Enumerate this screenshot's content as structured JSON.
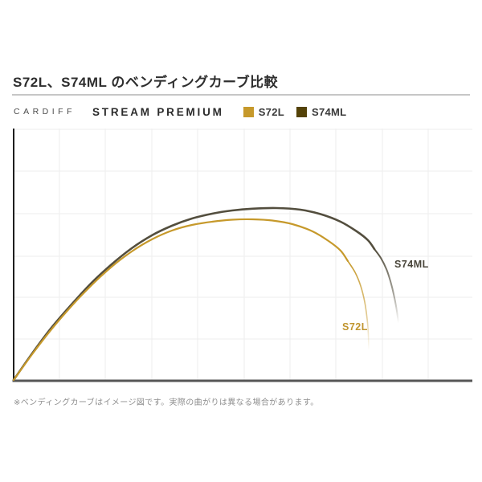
{
  "header": {
    "title": "S72L、S74ML のベンディングカーブ比較"
  },
  "legend": {
    "brand": "CARDIFF",
    "product": "STREAM PREMIUM",
    "items": [
      {
        "label": "S72L",
        "color": "#C6992B"
      },
      {
        "label": "S74ML",
        "color": "#544208"
      }
    ]
  },
  "footnote": {
    "text": "※ベンディングカーブはイメージ図です。実際の曲がりは異なる場合があります。"
  },
  "chart_data": {
    "type": "line",
    "title": "S72L、S74ML のベンディングカーブ比較",
    "xlabel": "",
    "ylabel": "",
    "axes_labeled": false,
    "grid": true,
    "note": "Illustrative rod bending curves from butt (origin, lower left) to tip; no numeric axis scales are shown",
    "series": [
      {
        "name": "S72L",
        "color": "#C6992B",
        "label_color": "#C0952F",
        "stroke_width": 2.2,
        "label_pos": [
          426,
          411
        ],
        "points": [
          [
            17,
            473
          ],
          [
            40,
            441
          ],
          [
            64,
            410
          ],
          [
            89,
            381
          ],
          [
            114,
            355
          ],
          [
            139,
            332
          ],
          [
            164,
            313
          ],
          [
            189,
            298
          ],
          [
            214,
            287
          ],
          [
            239,
            280
          ],
          [
            264,
            276
          ],
          [
            289,
            273.5
          ],
          [
            314,
            273
          ],
          [
            339,
            274.5
          ],
          [
            364,
            279
          ],
          [
            389,
            288
          ],
          [
            409,
            300
          ],
          [
            424,
            312
          ],
          [
            433,
            325
          ]
        ],
        "tail": [
          [
            433,
            325
          ],
          [
            442,
            339
          ],
          [
            449,
            356
          ],
          [
            454,
            376
          ],
          [
            457,
            397
          ],
          [
            458.5,
            416
          ],
          [
            459,
            436
          ]
        ]
      },
      {
        "name": "S74ML",
        "color": "#534E3E",
        "label_color": "#4A463B",
        "stroke_width": 2.6,
        "label_pos": [
          491,
          333
        ],
        "points": [
          [
            17,
            473
          ],
          [
            40,
            440
          ],
          [
            64,
            408
          ],
          [
            89,
            379
          ],
          [
            114,
            352
          ],
          [
            139,
            329
          ],
          [
            164,
            309
          ],
          [
            189,
            293
          ],
          [
            214,
            281
          ],
          [
            239,
            272
          ],
          [
            264,
            266
          ],
          [
            289,
            262
          ],
          [
            314,
            259.8
          ],
          [
            344,
            259
          ],
          [
            374,
            261
          ],
          [
            399,
            266.5
          ],
          [
            424,
            276
          ],
          [
            444,
            288
          ],
          [
            458,
            299
          ],
          [
            466,
            310
          ]
        ],
        "tail": [
          [
            466,
            310
          ],
          [
            474,
            321
          ],
          [
            481,
            335
          ],
          [
            486,
            350
          ],
          [
            490,
            366
          ],
          [
            493.5,
            384
          ],
          [
            496,
            402
          ]
        ]
      }
    ]
  }
}
